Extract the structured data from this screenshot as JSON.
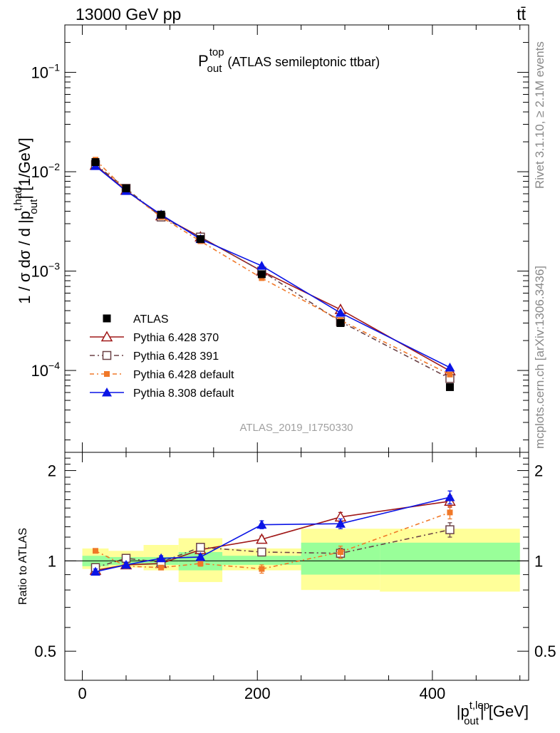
{
  "header": {
    "energy": "13000 GeV pp",
    "process": "tt̄",
    "side_rivet": "Rivet 3.1.10, ≥ 2.1M events",
    "side_mcplots": "mcplots.cern.ch [arXiv:1306.3436]",
    "analysis_id": "ATLAS_2019_I1750330"
  },
  "chart_data": {
    "type": "line",
    "title_main": "P",
    "title_sup": "top",
    "title_sub": "out",
    "title_rest": "(ATLAS semileptonic ttbar)",
    "ylabel_pre": "1 / σ dσ / d |p",
    "ylabel_sup": "t,had",
    "ylabel_sub": "out",
    "ylabel_post": "| [1/GeV]",
    "xlabel_pre": "|p",
    "xlabel_sup": "t,lep",
    "xlabel_sub": "out",
    "xlabel_post": "| [GeV]",
    "ratio_ylabel": "Ratio to ATLAS",
    "xlim": [
      -20,
      510
    ],
    "ylim_log": [
      1.5e-05,
      0.3
    ],
    "ratio_ylim": [
      0.4,
      2.3
    ],
    "x_ticks": [
      0,
      200,
      400
    ],
    "x_tick_labels": [
      "0",
      "200",
      "400"
    ],
    "y_ticks": [
      0.0001,
      0.001,
      0.01,
      0.1
    ],
    "y_tick_labels": [
      [
        "10",
        "−4"
      ],
      [
        "10",
        "−3"
      ],
      [
        "10",
        "−2"
      ],
      [
        "10",
        "−1"
      ]
    ],
    "ratio_ticks": [
      0.5,
      1,
      2
    ],
    "ratio_tick_labels": [
      "0.5",
      "1",
      "2"
    ],
    "x": [
      15,
      50,
      90,
      135,
      205,
      295,
      420
    ],
    "bin_edges": [
      0,
      30,
      70,
      110,
      160,
      250,
      340,
      500
    ],
    "atlas": [
      0.0125,
      0.0068,
      0.0037,
      0.0021,
      0.00093,
      0.0003,
      6.8e-05
    ],
    "band_inner": [
      [
        0.96,
        1.04
      ],
      [
        0.97,
        1.03
      ],
      [
        0.97,
        1.03
      ],
      [
        0.93,
        1.07
      ],
      [
        0.97,
        1.04
      ],
      [
        0.9,
        1.15
      ],
      [
        0.9,
        1.15
      ]
    ],
    "band_outer": [
      [
        0.94,
        1.1
      ],
      [
        0.95,
        1.08
      ],
      [
        0.93,
        1.13
      ],
      [
        0.85,
        1.19
      ],
      [
        0.93,
        1.1
      ],
      [
        0.8,
        1.28
      ],
      [
        0.79,
        1.28
      ]
    ],
    "legend_placement": "left",
    "series": [
      {
        "name": "ATLAS",
        "color": "#000000",
        "marker": "square-filled",
        "dash": "",
        "values": [
          0.0125,
          0.0068,
          0.0037,
          0.0021,
          0.00093,
          0.0003,
          6.8e-05
        ],
        "ratio": [],
        "ratio_err": []
      },
      {
        "name": "Pythia 6.428 370",
        "color": "#a01818",
        "marker": "triangle-open",
        "dash": "",
        "values": [
          0.0116,
          0.0065,
          0.0036,
          0.0022,
          0.001,
          0.00041,
          9.9e-05
        ],
        "ratio": [
          0.93,
          0.97,
          0.98,
          1.09,
          1.18,
          1.4,
          1.58
        ],
        "ratio_err": [
          0.02,
          0.02,
          0.02,
          0.02,
          0.03,
          0.05,
          0.07
        ]
      },
      {
        "name": "Pythia 6.428 391",
        "color": "#6b4246",
        "marker": "square-open",
        "dash": "7,4,2,4",
        "values": [
          0.0118,
          0.0068,
          0.0035,
          0.0022,
          0.001,
          0.00031,
          8.3e-05
        ],
        "ratio": [
          0.95,
          1.02,
          0.99,
          1.11,
          1.07,
          1.06,
          1.27
        ],
        "ratio_err": [
          0.02,
          0.02,
          0.02,
          0.02,
          0.03,
          0.04,
          0.07
        ]
      },
      {
        "name": "Pythia 6.428 default",
        "color": "#f07828",
        "marker": "square-small-filled",
        "dash": "6,4,2,4",
        "values": [
          0.0132,
          0.0065,
          0.0035,
          0.002,
          0.00085,
          0.00032,
          9.1e-05
        ],
        "ratio": [
          1.08,
          0.96,
          0.95,
          0.98,
          0.94,
          1.07,
          1.45
        ],
        "ratio_err": [
          0.01,
          0.01,
          0.01,
          0.02,
          0.03,
          0.05,
          0.07
        ]
      },
      {
        "name": "Pythia 8.308 default",
        "color": "#0a14e6",
        "marker": "triangle-filled",
        "dash": "",
        "values": [
          0.0114,
          0.0064,
          0.0037,
          0.0021,
          0.00113,
          0.00038,
          0.000107
        ],
        "ratio": [
          0.92,
          0.97,
          1.02,
          1.03,
          1.32,
          1.33,
          1.63
        ],
        "ratio_err": [
          0.02,
          0.02,
          0.02,
          0.02,
          0.04,
          0.05,
          0.08
        ]
      }
    ]
  }
}
